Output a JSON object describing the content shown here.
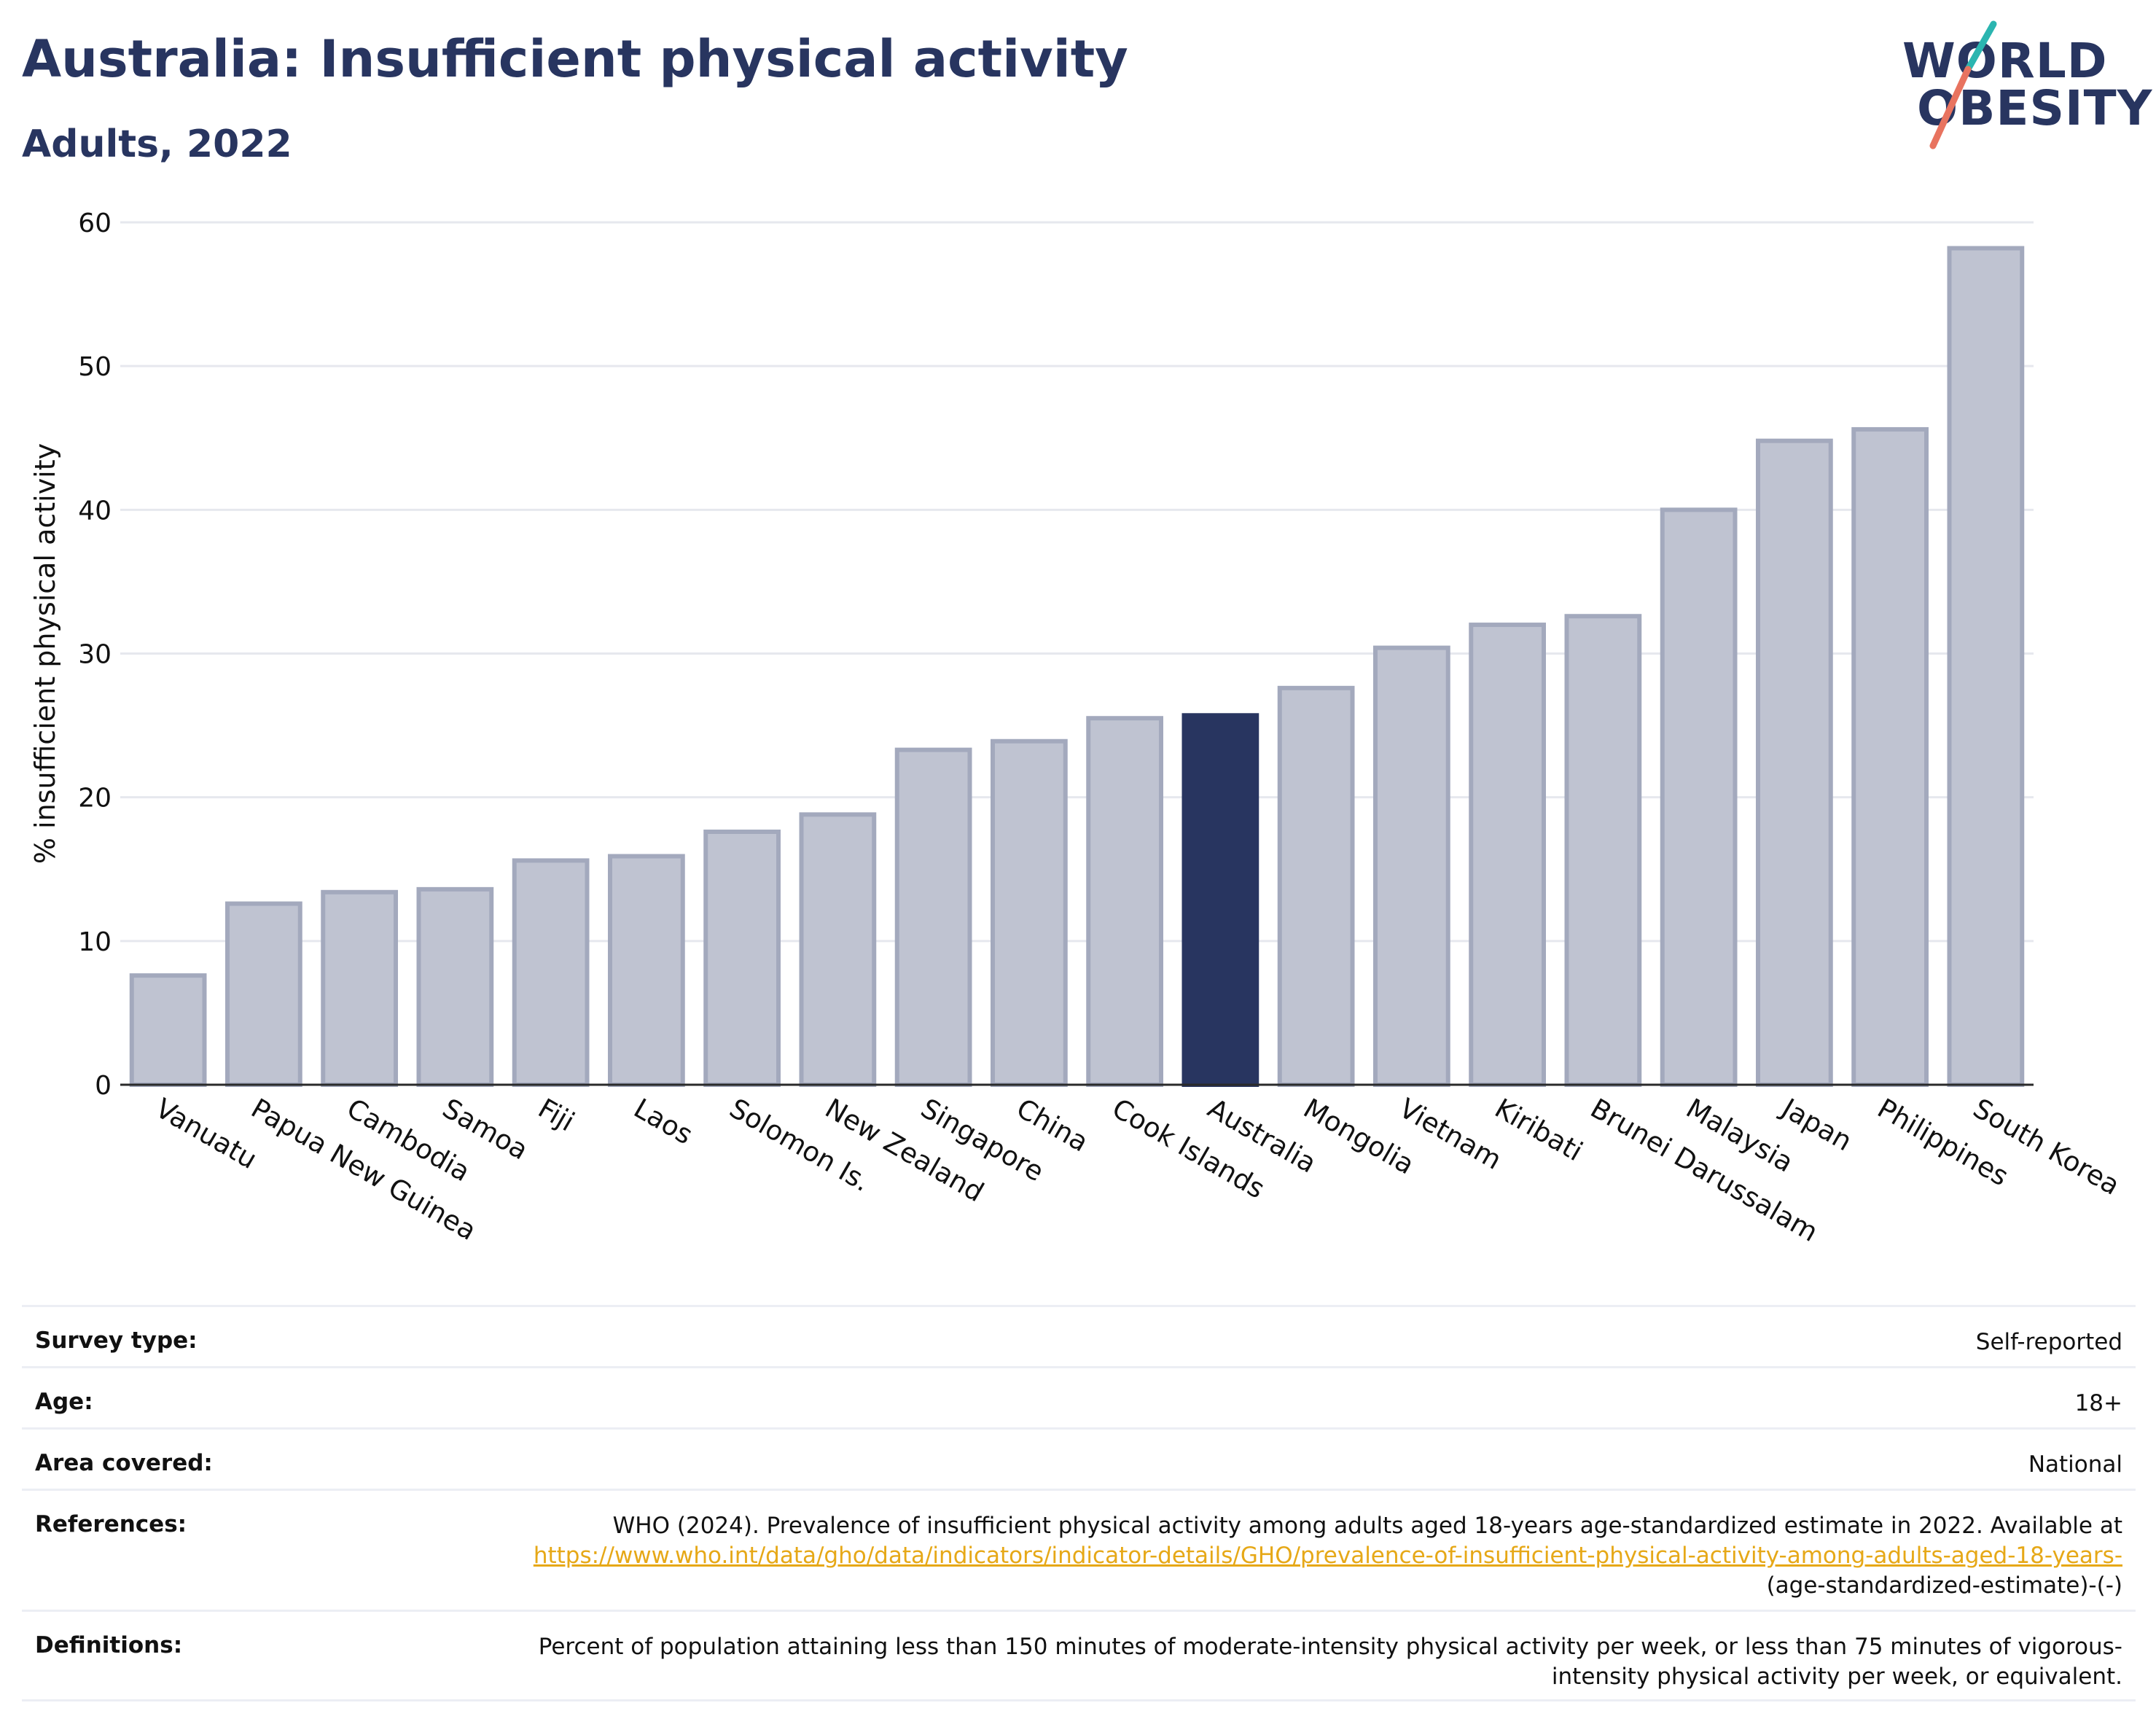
{
  "header": {
    "title": "Australia: Insufficient physical activity",
    "subtitle": "Adults, 2022"
  },
  "logo": {
    "line1": "WORLD",
    "line2": "OBESITY"
  },
  "chart_data": {
    "type": "bar",
    "ylabel": "% insufficient physical activity",
    "xlabel": "",
    "ylim": [
      0,
      60
    ],
    "yticks": [
      0,
      10,
      20,
      30,
      40,
      50,
      60
    ],
    "grid": true,
    "highlight": "Australia",
    "highlight_color": "#283560",
    "bar_color": "#bfc3d1",
    "bar_edge_color": "#a3a9bd",
    "categories": [
      "Vanuatu",
      "Papua New Guinea",
      "Cambodia",
      "Samoa",
      "Fiji",
      "Laos",
      "Solomon Is.",
      "New Zealand",
      "Singapore",
      "China",
      "Cook Islands",
      "Australia",
      "Mongolia",
      "Vietnam",
      "Kiribati",
      "Brunei Darussalam",
      "Malaysia",
      "Japan",
      "Philippines",
      "South Korea"
    ],
    "values": [
      7.6,
      12.6,
      13.4,
      13.6,
      15.6,
      15.9,
      17.6,
      18.8,
      23.3,
      23.9,
      25.5,
      25.7,
      27.6,
      30.4,
      32.0,
      32.6,
      40.0,
      44.8,
      45.6,
      58.2
    ]
  },
  "table": {
    "survey_type": {
      "label": "Survey type:",
      "value": "Self-reported"
    },
    "age": {
      "label": "Age:",
      "value": "18+"
    },
    "area": {
      "label": "Area covered:",
      "value": "National"
    },
    "references": {
      "label": "References:",
      "text": "WHO (2024). Prevalence of insufficient physical activity among adults aged 18-years age-standardized estimate in 2022. Available at",
      "link": "https://www.who.int/data/gho/data/indicators/indicator-details/GHO/prevalence-of-insufficient-physical-activity-among-adults-aged-18-years-",
      "suffix": "(age-standardized-estimate)-(-)"
    },
    "definitions": {
      "label": "Definitions:",
      "value": "Percent of population attaining less than 150 minutes of moderate-intensity physical activity per week, or less than 75 minutes of vigorous-intensity physical activity per week, or equivalent."
    }
  }
}
